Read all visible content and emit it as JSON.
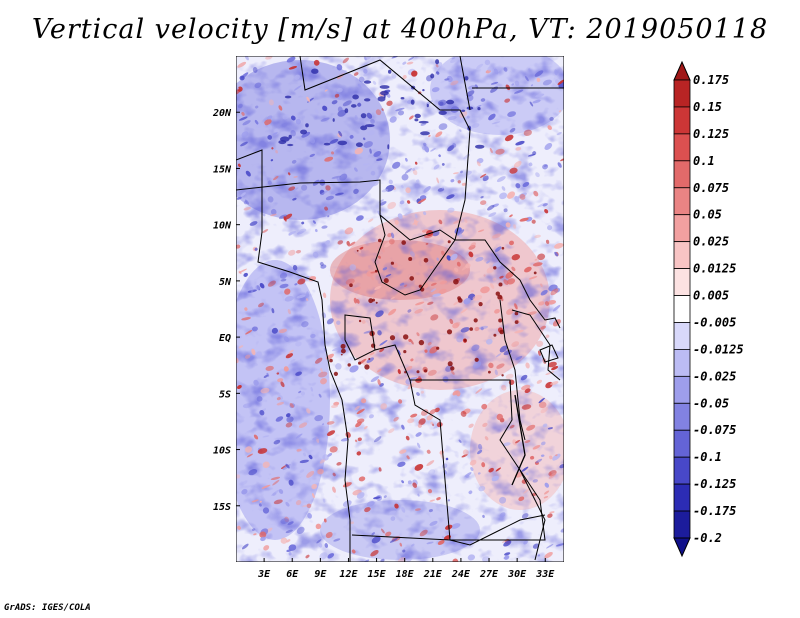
{
  "title": "Vertical velocity [m/s] at 400hPa, VT: 2019050118",
  "credit": "GrADS: IGES/COLA",
  "map": {
    "lat_labels": [
      "20N",
      "15N",
      "10N",
      "5N",
      "EQ",
      "5S",
      "10S",
      "15S"
    ],
    "lat_values": [
      20,
      15,
      10,
      5,
      0,
      -5,
      -10,
      -15
    ],
    "lon_labels": [
      "3E",
      "6E",
      "9E",
      "12E",
      "15E",
      "18E",
      "21E",
      "24E",
      "27E",
      "30E",
      "33E"
    ],
    "lon_values": [
      3,
      6,
      9,
      12,
      15,
      18,
      21,
      24,
      27,
      30,
      33
    ],
    "lon_range": [
      0,
      35
    ],
    "lat_range": [
      -20,
      25
    ]
  },
  "colorbar": {
    "labels": [
      "0.175",
      "0.15",
      "0.125",
      "0.1",
      "0.075",
      "0.05",
      "0.025",
      "0.0125",
      "0.005",
      "-0.005",
      "-0.0125",
      "-0.025",
      "-0.05",
      "-0.075",
      "-0.1",
      "-0.125",
      "-0.175",
      "-0.2"
    ],
    "colors": [
      "#a01818",
      "#b82424",
      "#cc3636",
      "#dc5050",
      "#e26a6a",
      "#ea8484",
      "#f2a0a0",
      "#f8c4c4",
      "#fce2e2",
      "#ffffff",
      "#d8d8fa",
      "#bcbcf4",
      "#9e9eec",
      "#8282e2",
      "#6464d6",
      "#4848c8",
      "#2c2cb4",
      "#1c1c9c",
      "#10108a"
    ]
  }
}
